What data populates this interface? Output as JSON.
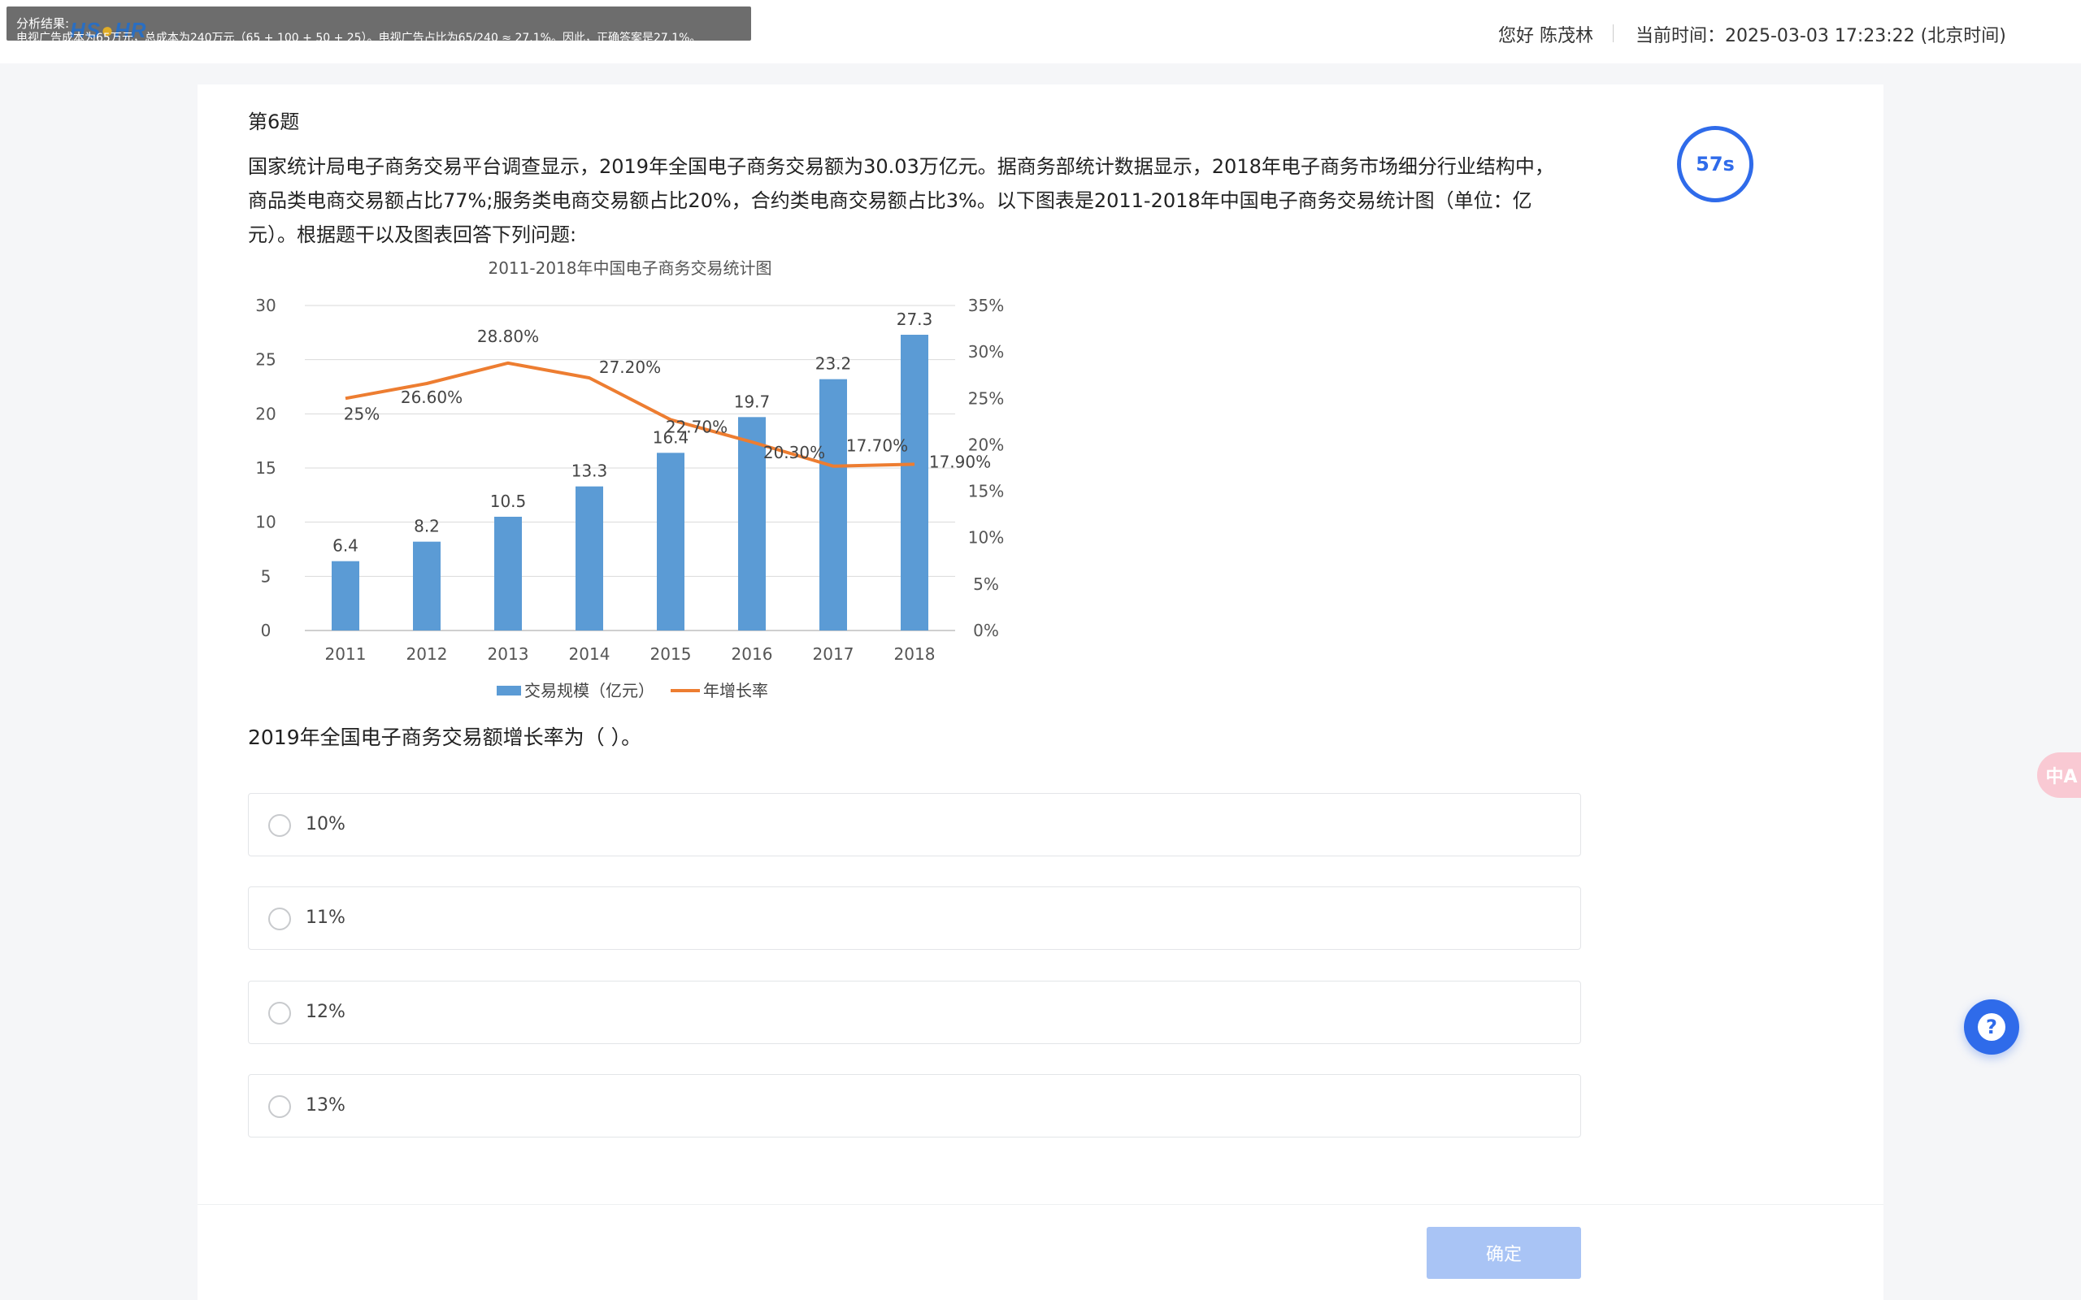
{
  "header": {
    "analysis_title": "分析结果:",
    "analysis_text": "电视广告成本为65万元，总成本为240万元（65 + 100 + 50 + 25）。电视广告占比为65/240 ≈ 27.1%。因此，正确答案是27.1%。",
    "greeting": "您好 陈茂林",
    "current_time": "当前时间：2025-03-03 17:23:22 (北京时间)"
  },
  "question": {
    "number": "第6题",
    "stem": "国家统计局电子商务交易平台调查显示，2019年全国电子商务交易额为30.03万亿元。据商务部统计数据显示，2018年电子商务市场细分行业结构中，商品类电商交易额占比77%;服务类电商交易额占比20%，合约类电商交易额占比3%。以下图表是2011-2018年中国电子商务交易统计图（单位：亿元）。根据题干以及图表回答下列问题:",
    "sub_question": "2019年全国电子商务交易额增长率为（ ）。",
    "options": [
      {
        "label": "10%"
      },
      {
        "label": "11%"
      },
      {
        "label": "12%"
      },
      {
        "label": "13%"
      }
    ],
    "confirm_label": "确定"
  },
  "timer": {
    "label": "57s"
  },
  "translate": {
    "label": "中A"
  },
  "help": {
    "label": "?"
  },
  "chart_data": {
    "type": "bar",
    "title": "2011-2018年中国电子商务交易统计图",
    "categories": [
      "2011",
      "2012",
      "2013",
      "2014",
      "2015",
      "2016",
      "2017",
      "2018"
    ],
    "series": [
      {
        "name": "交易规模（亿元）",
        "type": "bar",
        "axis": "left",
        "color": "#5b9bd5",
        "values": [
          6.4,
          8.2,
          10.5,
          13.3,
          16.4,
          19.7,
          23.2,
          27.3
        ],
        "labels": [
          "6.4",
          "8.2",
          "10.5",
          "13.3",
          "16.4",
          "19.7",
          "23.2",
          "27.3"
        ]
      },
      {
        "name": "年增长率",
        "type": "line",
        "axis": "right",
        "color": "#ed7d31",
        "values": [
          25,
          26.6,
          28.8,
          27.2,
          22.7,
          20.3,
          17.7,
          17.9
        ],
        "labels": [
          "25%",
          "26.60%",
          "28.80%",
          "27.20%",
          "22.70%",
          "20.30%",
          "17.70%",
          "17.90%"
        ]
      }
    ],
    "yticks_left": [
      "0",
      "5",
      "10",
      "15",
      "20",
      "25",
      "30"
    ],
    "yticks_right": [
      "0%",
      "5%",
      "10%",
      "15%",
      "20%",
      "25%",
      "30%",
      "35%"
    ],
    "ylim_left": [
      0,
      30
    ],
    "ylim_right": [
      0,
      35
    ],
    "grid": true,
    "legend_position": "bottom"
  }
}
